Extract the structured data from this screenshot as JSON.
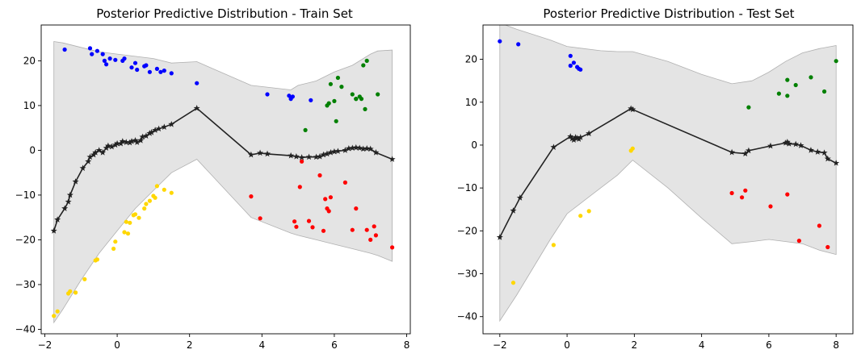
{
  "chart_data": [
    {
      "type": "scatter",
      "title": "Posterior Predictive Distribution - Train Set",
      "xlim": [
        -2.1,
        8.1
      ],
      "ylim": [
        -41,
        28
      ],
      "xticks": [
        -2,
        0,
        2,
        4,
        6,
        8
      ],
      "yticks": [
        -40,
        -30,
        -20,
        -10,
        0,
        10,
        20
      ],
      "grid": false,
      "colors": {
        "band": "#d9d9d9",
        "mean": "#222222",
        "blue": "#0000ff",
        "green": "#008000",
        "red": "#ff0000",
        "yellow": "#ffd700"
      },
      "band": {
        "x": [
          -1.75,
          -1.5,
          -1.0,
          -0.5,
          0.0,
          0.5,
          1.0,
          1.5,
          2.2,
          3.7,
          4.8,
          5.0,
          5.5,
          6.0,
          6.5,
          7.0,
          7.2,
          7.6
        ],
        "upper": [
          24.3,
          24.0,
          23.0,
          22.0,
          21.5,
          21.0,
          20.5,
          19.5,
          19.8,
          14.5,
          13.5,
          14.5,
          15.5,
          17.5,
          19.0,
          21.5,
          22.2,
          22.4
        ],
        "lower": [
          -38.5,
          -35.5,
          -29.0,
          -23.0,
          -18.0,
          -13.0,
          -9.0,
          -5.0,
          -2.0,
          -15.0,
          -18.5,
          -19.0,
          -20.0,
          -21.0,
          -22.0,
          -23.0,
          -23.5,
          -24.8
        ]
      },
      "mean_line": {
        "x": [
          -1.75,
          -1.65,
          -1.45,
          -1.35,
          -1.3,
          -1.15,
          -0.95,
          -0.8,
          -0.75,
          -0.65,
          -0.6,
          -0.5,
          -0.4,
          -0.3,
          -0.25,
          -0.15,
          -0.05,
          0.0,
          0.1,
          0.15,
          0.25,
          0.35,
          0.4,
          0.5,
          0.55,
          0.65,
          0.7,
          0.8,
          0.9,
          0.95,
          1.05,
          1.15,
          1.3,
          1.5,
          2.2,
          3.7,
          3.95,
          4.15,
          4.8,
          4.95,
          5.1,
          5.3,
          5.5,
          5.6,
          5.7,
          5.8,
          5.9,
          6.0,
          6.1,
          6.3,
          6.4,
          6.5,
          6.6,
          6.7,
          6.8,
          6.9,
          7.0,
          7.15,
          7.6
        ],
        "y": [
          -18.0,
          -15.5,
          -13.0,
          -11.5,
          -10.0,
          -7.0,
          -4.0,
          -2.5,
          -1.5,
          -1.0,
          -0.5,
          0.0,
          -0.5,
          0.5,
          1.0,
          0.8,
          1.2,
          1.5,
          1.5,
          2.0,
          1.8,
          1.7,
          2.0,
          2.2,
          1.8,
          2.2,
          3.0,
          3.2,
          3.8,
          4.0,
          4.5,
          4.8,
          5.2,
          5.8,
          9.4,
          -1.0,
          -0.6,
          -0.8,
          -1.2,
          -1.4,
          -1.6,
          -1.5,
          -1.5,
          -1.4,
          -1.0,
          -0.8,
          -0.5,
          -0.3,
          -0.2,
          0.0,
          0.4,
          0.5,
          0.6,
          0.5,
          0.3,
          0.4,
          0.3,
          -0.5,
          -2.0
        ]
      },
      "groups": [
        {
          "color": "blue",
          "x": [
            -1.45,
            -0.75,
            -0.7,
            -0.55,
            -0.4,
            -0.35,
            -0.3,
            -0.2,
            -0.05,
            0.15,
            0.2,
            0.4,
            0.5,
            0.55,
            0.75,
            0.8,
            0.9,
            1.1,
            1.2,
            1.3,
            1.5,
            2.2,
            4.15,
            4.75,
            4.8,
            4.85,
            5.35
          ],
          "y": [
            22.5,
            22.8,
            21.5,
            22.2,
            21.5,
            20.0,
            19.2,
            20.5,
            20.2,
            20.0,
            20.5,
            18.5,
            19.5,
            18.0,
            18.8,
            19.0,
            17.5,
            18.2,
            17.5,
            17.8,
            17.2,
            15.0,
            12.5,
            12.2,
            11.5,
            12.0,
            11.2
          ]
        },
        {
          "color": "green",
          "x": [
            5.2,
            5.8,
            5.85,
            5.9,
            6.0,
            6.05,
            6.1,
            6.2,
            6.5,
            6.6,
            6.75,
            6.8,
            6.85,
            6.9,
            7.2,
            6.7,
            6.6
          ],
          "y": [
            4.5,
            10.0,
            10.5,
            14.8,
            11.0,
            6.5,
            16.2,
            14.2,
            12.5,
            11.5,
            11.5,
            19.0,
            9.2,
            20.0,
            12.5,
            12.0,
            11.5
          ]
        },
        {
          "color": "red",
          "x": [
            3.7,
            3.95,
            4.9,
            4.95,
            5.05,
            5.1,
            5.3,
            5.4,
            5.6,
            5.7,
            5.75,
            5.8,
            5.85,
            5.9,
            6.3,
            6.5,
            6.6,
            6.9,
            7.1,
            7.15,
            7.6,
            7.0
          ],
          "y": [
            -10.3,
            -15.2,
            -15.9,
            -17.1,
            -8.2,
            -2.5,
            -15.8,
            -17.2,
            -5.6,
            -18.0,
            -10.9,
            -13.0,
            -13.6,
            -10.5,
            -7.2,
            -17.8,
            -13.0,
            -17.8,
            -17.0,
            -19.0,
            -21.7,
            -20.0
          ]
        },
        {
          "color": "yellow",
          "x": [
            -1.75,
            -1.65,
            -1.35,
            -1.3,
            -1.15,
            -0.9,
            -0.6,
            -0.55,
            -0.1,
            -0.05,
            0.2,
            0.25,
            0.3,
            0.35,
            0.45,
            0.5,
            0.6,
            0.75,
            0.8,
            0.9,
            1.0,
            1.05,
            1.1,
            1.3,
            1.5
          ],
          "y": [
            -37.0,
            -36.0,
            -32.0,
            -31.5,
            -31.8,
            -28.8,
            -24.6,
            -24.4,
            -22.0,
            -20.4,
            -18.3,
            -16.0,
            -18.6,
            -16.2,
            -14.5,
            -14.3,
            -15.1,
            -13.0,
            -12.0,
            -11.3,
            -10.2,
            -10.6,
            -8.0,
            -8.8,
            -9.5
          ]
        }
      ]
    },
    {
      "type": "scatter",
      "title": "Posterior Predictive Distribution - Test Set",
      "xlim": [
        -2.5,
        8.5
      ],
      "ylim": [
        -44,
        28
      ],
      "xticks": [
        -2,
        0,
        2,
        4,
        6,
        8
      ],
      "yticks": [
        -40,
        -30,
        -20,
        -10,
        0,
        10,
        20
      ],
      "grid": false,
      "colors": {
        "band": "#d9d9d9",
        "mean": "#222222",
        "blue": "#0000ff",
        "green": "#008000",
        "red": "#ff0000",
        "yellow": "#ffd700"
      },
      "band": {
        "x": [
          -2.0,
          -1.5,
          -0.5,
          0.0,
          0.5,
          1.0,
          1.5,
          1.95,
          3.0,
          4.0,
          4.9,
          5.5,
          6.0,
          6.5,
          7.0,
          7.5,
          8.0
        ],
        "upper": [
          28.5,
          27.0,
          24.5,
          23.0,
          22.5,
          22.0,
          21.8,
          21.8,
          19.5,
          16.5,
          14.3,
          15.0,
          17.0,
          19.5,
          21.5,
          22.5,
          23.2
        ],
        "lower": [
          -41.0,
          -35.0,
          -22.0,
          -16.0,
          -13.0,
          -10.0,
          -7.0,
          -3.5,
          -10.0,
          -17.0,
          -23.0,
          -22.5,
          -22.0,
          -22.5,
          -23.0,
          -24.5,
          -25.5
        ],
        "mask_from_left": true
      },
      "mean_line": {
        "x": [
          -2.0,
          -1.6,
          -1.4,
          -0.4,
          0.1,
          0.15,
          0.2,
          0.25,
          0.3,
          0.35,
          0.4,
          0.65,
          1.9,
          1.95,
          4.9,
          5.3,
          5.4,
          6.05,
          6.5,
          6.55,
          6.6,
          6.8,
          6.95,
          7.25,
          7.45,
          7.65,
          7.75,
          8.0
        ],
        "y": [
          -21.5,
          -15.3,
          -12.3,
          -0.5,
          2.0,
          1.5,
          1.2,
          1.8,
          1.6,
          1.4,
          1.8,
          2.7,
          8.5,
          8.3,
          -1.7,
          -2.0,
          -1.3,
          -0.2,
          0.5,
          0.7,
          0.3,
          0.2,
          -0.1,
          -1.2,
          -1.6,
          -1.8,
          -3.2,
          -4.2
        ]
      },
      "groups": [
        {
          "color": "blue",
          "x": [
            -2.0,
            -1.45,
            0.1,
            0.1,
            0.2,
            0.3,
            0.35,
            0.4
          ],
          "y": [
            24.2,
            23.5,
            20.8,
            18.5,
            19.2,
            18.2,
            17.8,
            17.6
          ]
        },
        {
          "color": "green",
          "x": [
            5.4,
            6.3,
            6.55,
            6.55,
            6.8,
            7.25,
            7.65,
            8.0
          ],
          "y": [
            8.8,
            12.0,
            11.5,
            15.2,
            14.0,
            15.8,
            12.5,
            19.6
          ]
        },
        {
          "color": "red",
          "x": [
            4.9,
            5.2,
            5.3,
            6.05,
            6.55,
            6.9,
            7.5,
            7.75
          ],
          "y": [
            -11.2,
            -12.2,
            -10.6,
            -14.3,
            -11.5,
            -22.3,
            -18.8,
            -23.8
          ]
        },
        {
          "color": "yellow",
          "x": [
            -1.6,
            -0.4,
            0.4,
            0.65,
            1.9,
            1.95
          ],
          "y": [
            -32.1,
            -23.3,
            -16.5,
            -15.4,
            -1.3,
            -0.8
          ]
        }
      ]
    }
  ]
}
